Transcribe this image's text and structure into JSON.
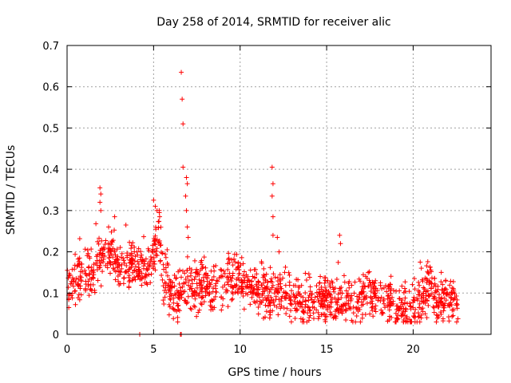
{
  "chart_data": {
    "type": "scatter",
    "title": "Day 258 of 2014, SRMTID for receiver alic",
    "xlabel": "GPS time / hours",
    "ylabel": "SRMTID / TECUs",
    "xlim": [
      0,
      24.5
    ],
    "ylim": [
      0,
      0.7
    ],
    "xticks": [
      0,
      5,
      10,
      15,
      20
    ],
    "yticks": [
      0,
      0.1,
      0.2,
      0.3,
      0.4,
      0.5,
      0.6,
      0.7
    ],
    "xtick_labels": [
      "0",
      "5",
      "10",
      "15",
      "20"
    ],
    "ytick_labels": [
      "0",
      "0.1",
      "0.2",
      "0.3",
      "0.4",
      "0.5",
      "0.6",
      "0.7"
    ],
    "grid": true,
    "marker": "+",
    "color": "#ff0000",
    "series": [
      {
        "name": "SRMTID",
        "trend": [
          [
            0.0,
            0.12
          ],
          [
            0.5,
            0.13
          ],
          [
            1.0,
            0.13
          ],
          [
            1.5,
            0.14
          ],
          [
            1.8,
            0.19
          ],
          [
            2.2,
            0.19
          ],
          [
            2.6,
            0.2
          ],
          [
            3.0,
            0.15
          ],
          [
            3.5,
            0.18
          ],
          [
            4.0,
            0.17
          ],
          [
            4.5,
            0.15
          ],
          [
            5.0,
            0.2
          ],
          [
            5.3,
            0.24
          ],
          [
            5.6,
            0.13
          ],
          [
            6.0,
            0.1
          ],
          [
            6.5,
            0.1
          ],
          [
            7.0,
            0.12
          ],
          [
            7.5,
            0.11
          ],
          [
            8.0,
            0.12
          ],
          [
            8.5,
            0.11
          ],
          [
            9.0,
            0.12
          ],
          [
            9.5,
            0.14
          ],
          [
            10.0,
            0.13
          ],
          [
            10.5,
            0.12
          ],
          [
            11.0,
            0.11
          ],
          [
            11.5,
            0.1
          ],
          [
            12.0,
            0.1
          ],
          [
            12.5,
            0.09
          ],
          [
            13.0,
            0.08
          ],
          [
            13.5,
            0.08
          ],
          [
            14.0,
            0.08
          ],
          [
            14.5,
            0.08
          ],
          [
            15.0,
            0.08
          ],
          [
            15.5,
            0.08
          ],
          [
            16.0,
            0.08
          ],
          [
            16.5,
            0.07
          ],
          [
            17.0,
            0.08
          ],
          [
            17.5,
            0.1
          ],
          [
            18.0,
            0.09
          ],
          [
            18.5,
            0.08
          ],
          [
            19.0,
            0.07
          ],
          [
            19.5,
            0.06
          ],
          [
            20.0,
            0.05
          ],
          [
            20.5,
            0.1
          ],
          [
            21.0,
            0.12
          ],
          [
            21.5,
            0.07
          ],
          [
            22.0,
            0.08
          ],
          [
            22.6,
            0.08
          ]
        ],
        "spread": 0.04,
        "n_points": 1500,
        "highlights": [
          [
            6.6,
            0.635
          ],
          [
            6.65,
            0.57
          ],
          [
            6.7,
            0.51
          ],
          [
            6.7,
            0.405
          ],
          [
            6.9,
            0.38
          ],
          [
            6.95,
            0.365
          ],
          [
            6.85,
            0.335
          ],
          [
            6.9,
            0.3
          ],
          [
            6.95,
            0.26
          ],
          [
            7.0,
            0.235
          ],
          [
            11.85,
            0.405
          ],
          [
            11.9,
            0.365
          ],
          [
            11.85,
            0.335
          ],
          [
            11.9,
            0.285
          ],
          [
            11.9,
            0.24
          ],
          [
            12.15,
            0.235
          ],
          [
            12.25,
            0.2
          ],
          [
            1.9,
            0.355
          ],
          [
            1.95,
            0.34
          ],
          [
            1.9,
            0.32
          ],
          [
            1.95,
            0.3
          ],
          [
            5.0,
            0.325
          ],
          [
            5.1,
            0.31
          ],
          [
            5.2,
            0.3
          ],
          [
            5.35,
            0.285
          ],
          [
            2.75,
            0.285
          ],
          [
            3.4,
            0.265
          ],
          [
            2.4,
            0.26
          ],
          [
            15.75,
            0.24
          ],
          [
            15.8,
            0.22
          ],
          [
            4.2,
            0.0
          ],
          [
            6.55,
            0.0
          ],
          [
            6.6,
            0.0
          ]
        ]
      }
    ]
  }
}
